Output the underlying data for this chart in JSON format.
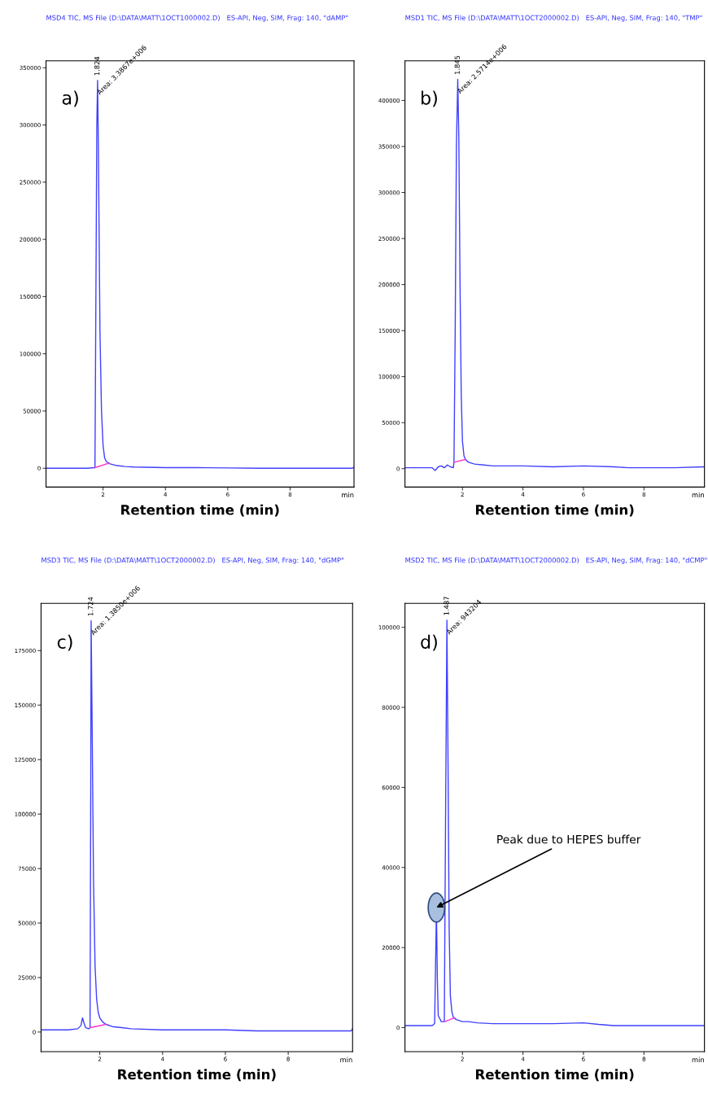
{
  "chart_data": [
    {
      "type": "line",
      "title": "MSD4 TIC, MS File (D:\\DATA\\MATT\\1OCT1000002.D)   ES-API, Neg, SIM, Frag: 140, \"dAMP\"",
      "xlabel": "Retention time (min)",
      "xlim": [
        0.17,
        10.05
      ],
      "xticks": [
        2,
        4,
        6,
        8
      ],
      "ylim": [
        -16500,
        356000
      ],
      "yticks": [
        0,
        50000,
        100000,
        150000,
        200000,
        250000,
        300000,
        350000
      ],
      "series": [
        {
          "color": "#4040ff",
          "x": [
            0.17,
            0.5,
            1.0,
            1.5,
            1.74,
            1.77,
            1.8,
            1.824,
            1.85,
            1.9,
            1.95,
            2.0,
            2.05,
            2.1,
            2.2,
            2.4,
            2.7,
            3.0,
            4.0,
            5.0,
            6.0,
            7.0,
            8.0,
            9.0,
            10.0,
            10.05
          ],
          "values": [
            0,
            0,
            0,
            0,
            500,
            150000,
            300000,
            339000,
            280000,
            120000,
            50000,
            20000,
            9000,
            6000,
            4000,
            2500,
            1500,
            1000,
            500,
            500,
            200,
            0,
            0,
            0,
            0,
            1000
          ]
        },
        {
          "color": "#ff33cc",
          "x": [
            1.74,
            2.2
          ],
          "values": [
            500,
            4500
          ]
        }
      ],
      "annotations": [
        "a)",
        "min",
        {
          "text": "1.824",
          "x": 1.824,
          "y": 339000
        },
        {
          "text": "Area: 3.3867e+006",
          "x": 1.824,
          "y": 339000
        }
      ]
    },
    {
      "type": "line",
      "title": "MSD1 TIC, MS File (D:\\DATA\\MATT\\1OCT2000002.D)   ES-API, Neg, SIM, Frag: 140, \"TMP\"",
      "xlabel": "Retention time (min)",
      "xlim": [
        0.1,
        10.0
      ],
      "xticks": [
        2,
        4,
        6,
        8
      ],
      "ylim": [
        -20000,
        443000
      ],
      "yticks": [
        0,
        50000,
        100000,
        150000,
        200000,
        250000,
        300000,
        350000,
        400000
      ],
      "series": [
        {
          "color": "#4040ff",
          "x": [
            0.1,
            0.5,
            1.0,
            1.1,
            1.2,
            1.3,
            1.4,
            1.5,
            1.6,
            1.7,
            1.72,
            1.76,
            1.8,
            1.845,
            1.88,
            1.92,
            1.96,
            2.0,
            2.05,
            2.1,
            2.2,
            2.4,
            2.7,
            3.0,
            4.0,
            5.0,
            6.0,
            7.0,
            7.5,
            8.0,
            9.0,
            10.0
          ],
          "values": [
            1000,
            1000,
            1000,
            -2000,
            2000,
            3000,
            1000,
            4000,
            2000,
            1000,
            7000,
            150000,
            350000,
            423000,
            360000,
            200000,
            80000,
            30000,
            14000,
            10000,
            7000,
            5000,
            4000,
            3000,
            3000,
            2000,
            3000,
            2000,
            1000,
            1000,
            1000,
            2000
          ]
        },
        {
          "color": "#ff33cc",
          "x": [
            1.72,
            2.1
          ],
          "values": [
            7000,
            10000
          ]
        }
      ],
      "annotations": [
        "b)",
        "min",
        {
          "text": "1.845",
          "x": 1.845,
          "y": 423000
        },
        {
          "text": "Area: 2.5714e+006",
          "x": 1.845,
          "y": 423000
        }
      ]
    },
    {
      "type": "line",
      "title": "MSD3 TIC, MS File (D:\\DATA\\MATT\\1OCT2000002.D)   ES-API, Neg, SIM, Frag: 140, \"dGMP\"",
      "xlabel": "Retention time (min)",
      "xlim": [
        0.13,
        10.05
      ],
      "xticks": [
        2,
        4,
        6,
        8
      ],
      "ylim": [
        -9000,
        196700
      ],
      "yticks": [
        0,
        25000,
        50000,
        75000,
        100000,
        125000,
        150000,
        175000
      ],
      "series": [
        {
          "color": "#4040ff",
          "x": [
            0.13,
            0.5,
            1.0,
            1.3,
            1.4,
            1.45,
            1.5,
            1.55,
            1.65,
            1.69,
            1.71,
            1.724,
            1.75,
            1.8,
            1.85,
            1.9,
            1.95,
            2.0,
            2.1,
            2.2,
            2.4,
            2.7,
            3.0,
            4.0,
            5.0,
            6.0,
            7.0,
            8.0,
            9.0,
            10.0,
            10.05
          ],
          "values": [
            1000,
            1000,
            1000,
            1500,
            3000,
            6500,
            4000,
            2000,
            1500,
            2000,
            100000,
            188700,
            150000,
            70000,
            30000,
            15000,
            9000,
            6500,
            4500,
            3500,
            2500,
            2000,
            1500,
            1000,
            1000,
            1000,
            500,
            500,
            500,
            500,
            1500
          ]
        },
        {
          "color": "#ff33cc",
          "x": [
            1.69,
            2.2
          ],
          "values": [
            2000,
            3500
          ]
        }
      ],
      "annotations": [
        "c)",
        "min",
        {
          "text": "1.724",
          "x": 1.724,
          "y": 188700
        },
        {
          "text": "Area: 1.3850e+006",
          "x": 1.724,
          "y": 188700
        }
      ]
    },
    {
      "type": "line",
      "title": "MSD2 TIC, MS File (D:\\DATA\\MATT\\1OCT2000002.D)   ES-API, Neg, SIM, Frag: 140, \"dCMP\"",
      "xlabel": "Retention time (min)",
      "xlim": [
        0.1,
        10.0
      ],
      "xticks": [
        2,
        4,
        6,
        8
      ],
      "ylim": [
        -6000,
        106000
      ],
      "yticks": [
        0,
        20000,
        40000,
        60000,
        80000,
        100000
      ],
      "series": [
        {
          "color": "#4040ff",
          "x": [
            0.1,
            0.5,
            1.0,
            1.08,
            1.11,
            1.14,
            1.17,
            1.2,
            1.3,
            1.4,
            1.44,
            1.487,
            1.52,
            1.56,
            1.6,
            1.65,
            1.7,
            1.8,
            2.0,
            2.2,
            2.5,
            3.0,
            4.0,
            5.0,
            6.0,
            6.5,
            7.0,
            8.0,
            9.0,
            10.0
          ],
          "values": [
            500,
            500,
            500,
            1000,
            15000,
            30000,
            12000,
            3000,
            1500,
            1500,
            50000,
            101800,
            70000,
            25000,
            8000,
            4000,
            2500,
            2000,
            1500,
            1500,
            1200,
            1000,
            1000,
            1000,
            1200,
            800,
            500,
            500,
            500,
            500
          ]
        },
        {
          "color": "#ff33cc",
          "x": [
            1.42,
            1.75
          ],
          "values": [
            1500,
            2500
          ]
        }
      ],
      "annotations": [
        "d)",
        "min",
        {
          "text": "1.487",
          "x": 1.487,
          "y": 101800
        },
        {
          "text": "Area: 943204",
          "x": 1.487,
          "y": 101800
        },
        {
          "text": "Peak due to HEPES buffer",
          "x": 1.14,
          "y": 30000
        }
      ]
    }
  ]
}
